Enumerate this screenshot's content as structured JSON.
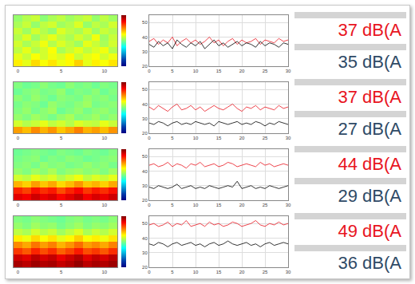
{
  "chart_data": [
    {
      "type": "heatmap",
      "xlim": [
        -0.5,
        11.5
      ],
      "xticks": [
        0,
        5,
        10
      ],
      "ylim": [
        -0.5,
        7.5
      ],
      "tick_labels": "x",
      "zlim": [
        0,
        100
      ],
      "z": [
        [
          64,
          60,
          66,
          62,
          65,
          61,
          63,
          67,
          60,
          64,
          62,
          65
        ],
        [
          60,
          57,
          62,
          58,
          61,
          59,
          63,
          57,
          60,
          62,
          58,
          61
        ],
        [
          56,
          60,
          55,
          58,
          62,
          54,
          57,
          60,
          56,
          59,
          61,
          55
        ],
        [
          58,
          54,
          57,
          61,
          55,
          59,
          56,
          53,
          60,
          57,
          54,
          58
        ],
        [
          55,
          59,
          53,
          57,
          60,
          56,
          54,
          58,
          55,
          61,
          53,
          57
        ],
        [
          57,
          53,
          58,
          55,
          52,
          59,
          56,
          54,
          58,
          53,
          57,
          55
        ],
        [
          54,
          57,
          52,
          56,
          58,
          53,
          55,
          59,
          52,
          56,
          54,
          58
        ],
        [
          52,
          55,
          57,
          51,
          54,
          56,
          53,
          55,
          57,
          52,
          56,
          53
        ]
      ]
    },
    {
      "type": "line",
      "grid": true,
      "xlim": [
        0,
        30
      ],
      "xticks": [
        0,
        5,
        10,
        15,
        20,
        25,
        30
      ],
      "ylim": [
        20,
        55
      ],
      "yticks": [
        20,
        30,
        40,
        50
      ],
      "x": [
        0,
        1,
        2,
        3,
        4,
        5,
        6,
        7,
        8,
        9,
        10,
        11,
        12,
        13,
        14,
        15,
        16,
        17,
        18,
        19,
        20,
        21,
        22,
        23,
        24,
        25,
        26,
        27,
        28,
        29,
        30
      ],
      "series": [
        {
          "color": "#e8141e",
          "values": [
            37,
            39,
            35,
            38,
            36,
            40,
            34,
            37,
            39,
            36,
            38,
            35,
            37,
            40,
            36,
            38,
            34,
            37,
            39,
            35,
            38,
            36,
            37,
            39,
            35,
            38,
            37,
            36,
            39,
            37,
            38
          ]
        },
        {
          "color": "#000000",
          "values": [
            35,
            33,
            37,
            34,
            36,
            32,
            38,
            35,
            33,
            36,
            34,
            37,
            32,
            35,
            38,
            34,
            36,
            33,
            35,
            37,
            34,
            36,
            35,
            33,
            37,
            34,
            36,
            35,
            33,
            36,
            35
          ]
        }
      ],
      "annotations": [
        "37 dB(A",
        "35 dB(A"
      ]
    },
    {
      "type": "heatmap",
      "xlim": [
        -0.5,
        11.5
      ],
      "xticks": [
        0,
        5,
        10
      ],
      "ylim": [
        -0.5,
        7.5
      ],
      "tick_labels": "x",
      "zlim": [
        0,
        100
      ],
      "z": [
        [
          72,
          69,
          74,
          70,
          73,
          68,
          71,
          75,
          70,
          72,
          69,
          73
        ],
        [
          58,
          55,
          57,
          60,
          56,
          58,
          55,
          59,
          57,
          56,
          60,
          57
        ],
        [
          52,
          50,
          53,
          51,
          49,
          52,
          54,
          50,
          51,
          53,
          50,
          52
        ],
        [
          50,
          52,
          49,
          51,
          53,
          48,
          50,
          52,
          49,
          51,
          52,
          50
        ],
        [
          49,
          51,
          50,
          48,
          52,
          50,
          49,
          51,
          53,
          49,
          50,
          51
        ],
        [
          51,
          49,
          52,
          50,
          48,
          51,
          50,
          49,
          52,
          50,
          51,
          49
        ],
        [
          48,
          50,
          51,
          49,
          50,
          52,
          48,
          50,
          49,
          51,
          48,
          50
        ],
        [
          50,
          48,
          49,
          51,
          49,
          48,
          51,
          49,
          50,
          48,
          50,
          49
        ]
      ]
    },
    {
      "type": "line",
      "grid": true,
      "xlim": [
        0,
        30
      ],
      "xticks": [
        0,
        5,
        10,
        15,
        20,
        25,
        30
      ],
      "ylim": [
        20,
        55
      ],
      "yticks": [
        20,
        30,
        40,
        50
      ],
      "x": [
        0,
        1,
        2,
        3,
        4,
        5,
        6,
        7,
        8,
        9,
        10,
        11,
        12,
        13,
        14,
        15,
        16,
        17,
        18,
        19,
        20,
        21,
        22,
        23,
        24,
        25,
        26,
        27,
        28,
        29,
        30
      ],
      "series": [
        {
          "color": "#e8141e",
          "values": [
            38,
            36,
            39,
            37,
            35,
            38,
            40,
            36,
            37,
            39,
            36,
            38,
            35,
            37,
            39,
            37,
            36,
            38,
            40,
            37,
            35,
            38,
            37,
            39,
            36,
            38,
            37,
            36,
            39,
            37,
            38
          ]
        },
        {
          "color": "#000000",
          "values": [
            27,
            26,
            28,
            27,
            25,
            27,
            28,
            26,
            27,
            26,
            28,
            27,
            26,
            27,
            25,
            28,
            27,
            26,
            27,
            28,
            26,
            27,
            26,
            28,
            27,
            25,
            27,
            26,
            28,
            27,
            26
          ]
        }
      ],
      "annotations": [
        "37 dB(A",
        "27 dB(A"
      ]
    },
    {
      "type": "heatmap",
      "xlim": [
        -0.5,
        11.5
      ],
      "xticks": [
        0,
        5,
        10
      ],
      "ylim": [
        -0.5,
        7.5
      ],
      "tick_labels": "x",
      "zlim": [
        0,
        100
      ],
      "z": [
        [
          90,
          88,
          92,
          89,
          91,
          87,
          90,
          93,
          88,
          91,
          89,
          92
        ],
        [
          84,
          81,
          86,
          83,
          85,
          80,
          84,
          87,
          82,
          85,
          83,
          86
        ],
        [
          70,
          67,
          72,
          68,
          71,
          66,
          69,
          73,
          68,
          70,
          67,
          71
        ],
        [
          58,
          56,
          60,
          57,
          59,
          55,
          58,
          61,
          56,
          59,
          57,
          60
        ],
        [
          52,
          50,
          53,
          51,
          54,
          50,
          52,
          53,
          51,
          52,
          50,
          53
        ],
        [
          50,
          51,
          49,
          52,
          50,
          51,
          49,
          50,
          52,
          50,
          51,
          49
        ],
        [
          49,
          50,
          51,
          48,
          50,
          49,
          51,
          50,
          48,
          49,
          50,
          51
        ],
        [
          48,
          49,
          50,
          49,
          48,
          50,
          49,
          48,
          50,
          49,
          48,
          50
        ]
      ]
    },
    {
      "type": "line",
      "grid": true,
      "xlim": [
        0,
        30
      ],
      "xticks": [
        0,
        5,
        10,
        15,
        20,
        25,
        30
      ],
      "ylim": [
        20,
        55
      ],
      "yticks": [
        20,
        30,
        40,
        50
      ],
      "x": [
        0,
        1,
        2,
        3,
        4,
        5,
        6,
        7,
        8,
        9,
        10,
        11,
        12,
        13,
        14,
        15,
        16,
        17,
        18,
        19,
        20,
        21,
        22,
        23,
        24,
        25,
        26,
        27,
        28,
        29,
        30
      ],
      "series": [
        {
          "color": "#e8141e",
          "values": [
            44,
            45,
            43,
            44,
            46,
            43,
            45,
            44,
            42,
            45,
            44,
            46,
            43,
            44,
            45,
            43,
            44,
            46,
            45,
            43,
            44,
            45,
            44,
            43,
            46,
            44,
            45,
            43,
            44,
            45,
            44
          ]
        },
        {
          "color": "#000000",
          "values": [
            29,
            28,
            30,
            29,
            28,
            29,
            31,
            28,
            29,
            30,
            28,
            29,
            28,
            30,
            29,
            28,
            29,
            30,
            29,
            33,
            28,
            29,
            30,
            28,
            29,
            28,
            30,
            29,
            28,
            29,
            30
          ]
        }
      ],
      "annotations": [
        "44 dB(A",
        "29 dB(A"
      ]
    },
    {
      "type": "heatmap",
      "xlim": [
        -0.5,
        11.5
      ],
      "xticks": [
        0,
        5,
        10
      ],
      "ylim": [
        -0.5,
        7.5
      ],
      "tick_labels": "x",
      "zlim": [
        0,
        100
      ],
      "z": [
        [
          96,
          94,
          97,
          95,
          96,
          93,
          95,
          98,
          94,
          96,
          95,
          97
        ],
        [
          92,
          90,
          94,
          91,
          93,
          89,
          92,
          95,
          90,
          93,
          91,
          94
        ],
        [
          82,
          79,
          84,
          80,
          83,
          78,
          81,
          85,
          80,
          82,
          79,
          83
        ],
        [
          74,
          71,
          76,
          72,
          75,
          70,
          73,
          77,
          72,
          74,
          71,
          75
        ],
        [
          64,
          61,
          66,
          62,
          65,
          60,
          63,
          67,
          62,
          64,
          61,
          65
        ],
        [
          56,
          54,
          58,
          55,
          57,
          53,
          56,
          59,
          54,
          57,
          55,
          58
        ],
        [
          52,
          50,
          53,
          51,
          52,
          49,
          51,
          53,
          50,
          52,
          51,
          53
        ],
        [
          50,
          49,
          51,
          50,
          49,
          48,
          50,
          51,
          49,
          50,
          49,
          51
        ]
      ]
    },
    {
      "type": "line",
      "grid": true,
      "xlim": [
        0,
        30
      ],
      "xticks": [
        0,
        5,
        10,
        15,
        20,
        25,
        30
      ],
      "ylim": [
        20,
        55
      ],
      "yticks": [
        20,
        30,
        40,
        50
      ],
      "x": [
        0,
        1,
        2,
        3,
        4,
        5,
        6,
        7,
        8,
        9,
        10,
        11,
        12,
        13,
        14,
        15,
        16,
        17,
        18,
        19,
        20,
        21,
        22,
        23,
        24,
        25,
        26,
        27,
        28,
        29,
        30
      ],
      "series": [
        {
          "color": "#e8141e",
          "values": [
            49,
            50,
            48,
            49,
            51,
            48,
            50,
            49,
            52,
            48,
            49,
            50,
            48,
            51,
            49,
            50,
            48,
            49,
            51,
            50,
            48,
            49,
            50,
            52,
            49,
            48,
            50,
            49,
            51,
            49,
            50
          ]
        },
        {
          "color": "#000000",
          "values": [
            36,
            35,
            37,
            36,
            34,
            36,
            37,
            35,
            36,
            37,
            35,
            36,
            34,
            36,
            37,
            35,
            36,
            38,
            36,
            35,
            36,
            37,
            35,
            36,
            34,
            36,
            37,
            35,
            36,
            37,
            36
          ]
        }
      ],
      "annotations": [
        "49 dB(A",
        "36 dB(A"
      ]
    }
  ]
}
